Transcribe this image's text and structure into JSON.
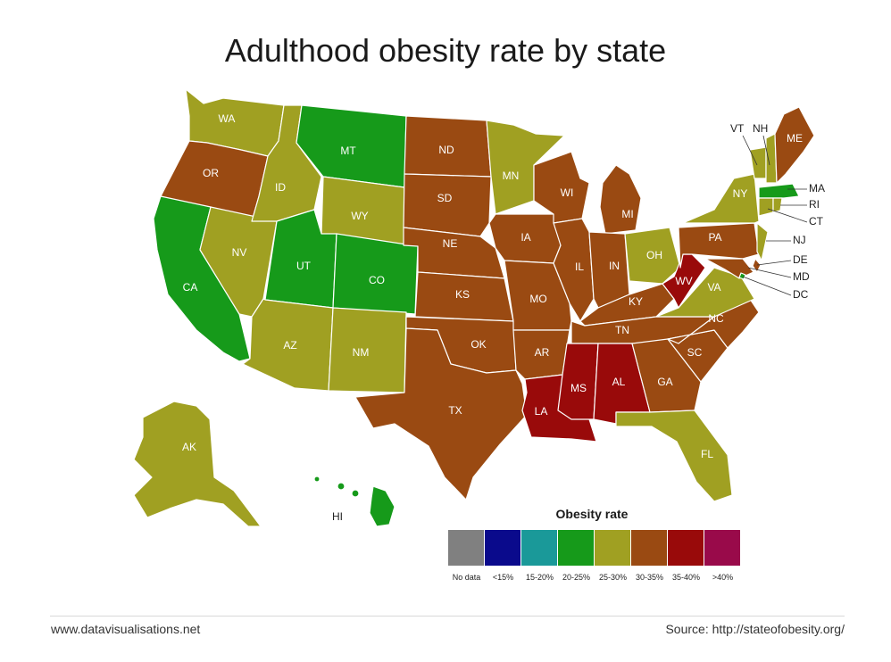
{
  "title": "Adulthood obesity rate by state",
  "legend": {
    "title": "Obesity rate",
    "bins": [
      {
        "key": "nodata",
        "label": "No data",
        "color": "#808080"
      },
      {
        "key": "lt15",
        "label": "<15%",
        "color": "#0a0a8c"
      },
      {
        "key": "15to20",
        "label": "15-20%",
        "color": "#1a9999"
      },
      {
        "key": "20to25",
        "label": "20-25%",
        "color": "#169a1a"
      },
      {
        "key": "25to30",
        "label": "25-30%",
        "color": "#a0a022"
      },
      {
        "key": "30to35",
        "label": "30-35%",
        "color": "#9a4a12"
      },
      {
        "key": "35to40",
        "label": "35-40%",
        "color": "#990a0a"
      },
      {
        "key": "gt40",
        "label": ">40%",
        "color": "#990a4a"
      }
    ]
  },
  "states": {
    "WA": "25to30",
    "OR": "30to35",
    "CA": "20to25",
    "NV": "25to30",
    "ID": "25to30",
    "MT": "20to25",
    "WY": "25to30",
    "UT": "20to25",
    "CO": "20to25",
    "AZ": "25to30",
    "NM": "25to30",
    "ND": "30to35",
    "SD": "30to35",
    "NE": "30to35",
    "KS": "30to35",
    "OK": "30to35",
    "TX": "30to35",
    "MN": "25to30",
    "IA": "30to35",
    "MO": "30to35",
    "AR": "30to35",
    "LA": "35to40",
    "WI": "30to35",
    "IL": "30to35",
    "MI": "30to35",
    "IN": "30to35",
    "OH": "25to30",
    "KY": "30to35",
    "TN": "30to35",
    "MS": "35to40",
    "AL": "35to40",
    "GA": "30to35",
    "FL": "25to30",
    "SC": "30to35",
    "NC": "30to35",
    "VA": "25to30",
    "WV": "35to40",
    "PA": "30to35",
    "NY": "25to30",
    "ME": "30to35",
    "VT": "25to30",
    "NH": "25to30",
    "MA": "20to25",
    "RI": "25to30",
    "CT": "25to30",
    "NJ": "25to30",
    "DE": "30to35",
    "MD": "30to35",
    "DC": "20to25",
    "AK": "25to30",
    "HI": "20to25"
  },
  "footer": {
    "left": "www.datavisualisations.net",
    "right": "Source: http://stateofobesity.org/"
  }
}
